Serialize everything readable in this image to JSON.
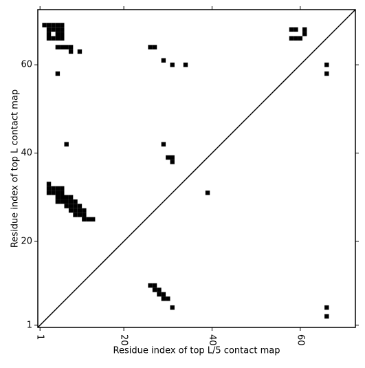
{
  "chart_data": {
    "type": "contact_map",
    "xlabel": "Residue index of top L/5 contact map",
    "ylabel": "Residue index of top L contact map",
    "xlim": [
      0.5,
      72.5
    ],
    "ylim": [
      0.5,
      72.5
    ],
    "xticks": [
      1,
      20,
      40,
      60
    ],
    "yticks": [
      1,
      20,
      40,
      60
    ],
    "color": "#000000",
    "diagonal": true,
    "x": [
      2,
      3,
      4,
      5,
      6,
      3,
      4,
      5,
      6,
      3,
      5,
      6,
      3,
      4,
      5,
      6,
      5,
      6,
      7,
      8,
      8,
      10,
      5,
      7,
      26,
      27,
      29,
      31,
      34,
      66,
      66,
      58,
      59,
      61,
      61,
      58,
      59,
      60,
      29,
      30,
      31,
      31,
      39,
      3,
      3,
      4,
      5,
      6,
      3,
      4,
      5,
      6,
      5,
      6,
      7,
      8,
      5,
      6,
      7,
      8,
      9,
      7,
      8,
      9,
      10,
      8,
      9,
      10,
      11,
      9,
      10,
      11,
      11,
      12,
      13,
      26,
      27,
      27,
      28,
      28,
      29,
      29,
      30,
      31,
      66,
      66
    ],
    "values": [
      69,
      69,
      69,
      69,
      69,
      68,
      68,
      68,
      68,
      67,
      67,
      67,
      66,
      66,
      66,
      66,
      64,
      64,
      64,
      64,
      63,
      63,
      58,
      42,
      64,
      64,
      61,
      60,
      60,
      60,
      58,
      68,
      68,
      68,
      67,
      66,
      66,
      66,
      42,
      39,
      39,
      38,
      31,
      33,
      32,
      32,
      32,
      32,
      31,
      31,
      31,
      31,
      30,
      30,
      30,
      30,
      29,
      29,
      29,
      29,
      29,
      28,
      28,
      28,
      28,
      27,
      27,
      27,
      27,
      26,
      26,
      26,
      25,
      25,
      25,
      10,
      10,
      9,
      9,
      8,
      8,
      7,
      7,
      5,
      5,
      3
    ]
  }
}
